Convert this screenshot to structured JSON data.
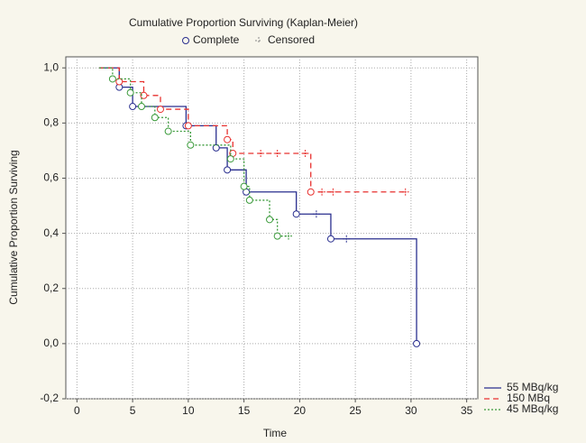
{
  "chart_data": {
    "type": "kaplan-meier",
    "title": "Cumulative Proportion Surviving (Kaplan-Meier)",
    "marker_legend": [
      "Complete",
      "Censored"
    ],
    "x_label": "Time",
    "y_label": "Cumulative Proportion Surviving",
    "xlim": [
      -1,
      36
    ],
    "ylim": [
      -0.2,
      1.04
    ],
    "xticks": [
      0,
      5,
      10,
      15,
      20,
      25,
      30,
      35
    ],
    "yticks": [
      {
        "value": 1.0,
        "label": "1,0"
      },
      {
        "value": 0.8,
        "label": "0,8"
      },
      {
        "value": 0.6,
        "label": "0,6"
      },
      {
        "value": 0.4,
        "label": "0,4"
      },
      {
        "value": 0.2,
        "label": "0,2"
      },
      {
        "value": 0.0,
        "label": "0,0"
      },
      {
        "value": -0.2,
        "label": "-0,2"
      }
    ],
    "grid": true,
    "legend": "bottom-right",
    "series": [
      {
        "name": "55 MBq/kg",
        "color": "#2a2f8f",
        "dash": "none",
        "x": [
          2,
          3.8,
          5,
          9.8,
          12.5,
          13.5,
          15.2,
          19.7,
          22.8,
          30.5
        ],
        "values": [
          1.0,
          0.93,
          0.86,
          0.79,
          0.71,
          0.63,
          0.55,
          0.47,
          0.38,
          0.0
        ],
        "censored_x": [
          21.5,
          24.2
        ],
        "censored_values": [
          0.47,
          0.38
        ]
      },
      {
        "name": "150 MBq",
        "color": "#e8312f",
        "dash": "6 4",
        "x": [
          2,
          3.8,
          6,
          7.5,
          10,
          13.5,
          14,
          21
        ],
        "values": [
          1.0,
          0.95,
          0.9,
          0.85,
          0.79,
          0.74,
          0.69,
          0.55
        ],
        "censored_x": [
          16.5,
          18,
          20.5,
          22,
          23,
          29.5
        ],
        "censored_values": [
          0.69,
          0.69,
          0.69,
          0.55,
          0.55,
          0.55
        ]
      },
      {
        "name": "45 MBq/kg",
        "color": "#3a9a3a",
        "dash": "2 2",
        "x": [
          2,
          3.2,
          4.8,
          5.8,
          7,
          8.2,
          10.2,
          13.8,
          15,
          15.5,
          17.3,
          18
        ],
        "values": [
          1.0,
          0.96,
          0.91,
          0.86,
          0.82,
          0.77,
          0.72,
          0.67,
          0.57,
          0.52,
          0.45,
          0.39
        ],
        "censored_x": [
          19
        ],
        "censored_values": [
          0.39
        ]
      }
    ]
  }
}
